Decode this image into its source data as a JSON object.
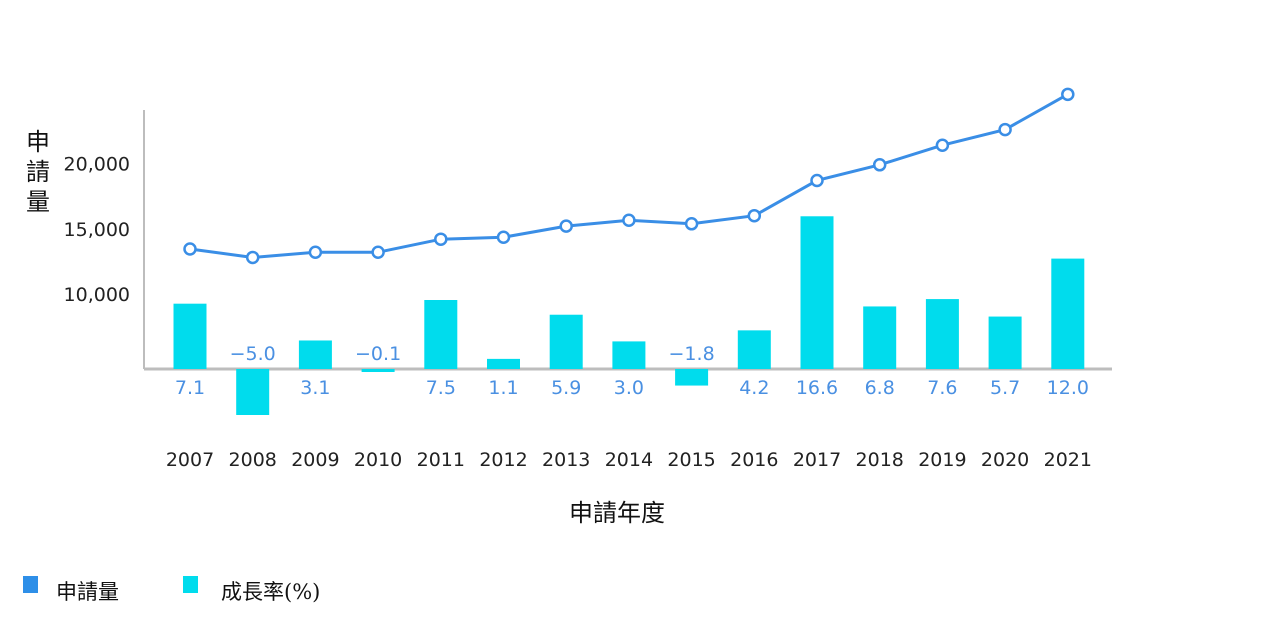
{
  "chart_data": {
    "type": "bar",
    "title": "",
    "xlabel": "申請年度",
    "ylabel": "申請量",
    "categories": [
      "2007",
      "2008",
      "2009",
      "2010",
      "2011",
      "2012",
      "2013",
      "2014",
      "2015",
      "2016",
      "2017",
      "2018",
      "2019",
      "2020",
      "2021"
    ],
    "y_ticks": [
      "10,000",
      "15,000",
      "20,000"
    ],
    "y_tick_values": [
      10000,
      15000,
      20000
    ],
    "ylim": [
      4300,
      24500
    ],
    "growth_ylim": [
      -5.0,
      16.6
    ],
    "series": [
      {
        "name": "申請量",
        "kind": "line",
        "color": "#3a8ee6",
        "values": [
          13450,
          12800,
          13200,
          13200,
          14200,
          14350,
          15200,
          15650,
          15380,
          16000,
          18700,
          19900,
          21400,
          22600,
          25300
        ]
      },
      {
        "name": "成長率(%)",
        "kind": "bar",
        "color": "#00dced",
        "values": [
          7.1,
          -5.0,
          3.1,
          -0.1,
          7.5,
          1.1,
          5.9,
          3.0,
          -1.8,
          4.2,
          16.6,
          6.8,
          7.6,
          5.7,
          12.0
        ],
        "labels": [
          "7.1",
          "−5.0",
          "3.1",
          "−0.1",
          "7.5",
          "1.1",
          "5.9",
          "3.0",
          "−1.8",
          "4.2",
          "16.6",
          "6.8",
          "7.6",
          "5.7",
          "12.0"
        ]
      }
    ],
    "legend": {
      "placement": "bottom-left",
      "items": [
        {
          "label": "申請量",
          "color": "#2e8fe8"
        },
        {
          "label": "成長率(%)",
          "color": "#00dced"
        }
      ]
    }
  }
}
